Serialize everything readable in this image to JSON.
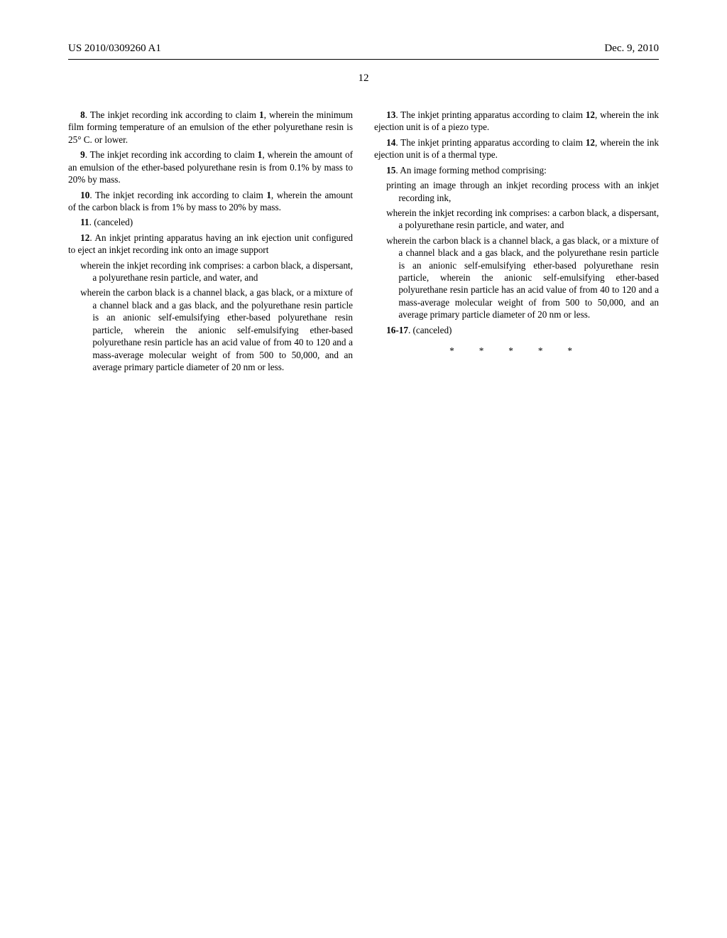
{
  "header": {
    "left": "US 2010/0309260 A1",
    "right": "Dec. 9, 2010"
  },
  "page_number": "12",
  "claims": {
    "c8": "The inkjet recording ink according to claim 1, wherein the minimum film forming temperature of an emulsion of the ether polyurethane resin is 25° C. or lower.",
    "c9": "The inkjet recording ink according to claim 1, wherein the amount of an emulsion of the ether-based polyurethane resin is from 0.1% by mass to 20% by mass.",
    "c10": "The inkjet recording ink according to claim 1, wherein the amount of the carbon black is from 1% by mass to 20% by mass.",
    "c11": "(canceled)",
    "c12_intro": "An inkjet printing apparatus having an ink ejection unit configured to eject an inkjet recording ink onto an image support",
    "c12_w1": "wherein the inkjet recording ink comprises: a carbon black, a dispersant, a polyurethane resin particle, and water, and",
    "c12_w2": "wherein the carbon black is a channel black, a gas black, or a mixture of a channel black and a gas black, and the polyurethane resin particle is an anionic self-emulsifying ether-based polyurethane resin particle, wherein the anionic self-emulsifying ether-based polyurethane resin particle has an acid value of from 40 to 120 and a mass-average molecular weight of from 500 to 50,000, and an average primary particle diameter of 20 nm or less.",
    "c13": "The inkjet printing apparatus according to claim 12, wherein the ink ejection unit is of a piezo type.",
    "c14": "The inkjet printing apparatus according to claim 12, wherein the ink ejection unit is of a thermal type.",
    "c15_intro": "An image forming method comprising:",
    "c15_w0": "printing an image through an inkjet recording process with an inkjet recording ink,",
    "c15_w1": "wherein the inkjet recording ink comprises: a carbon black, a dispersant, a polyurethane resin particle, and water, and",
    "c15_w2": "wherein the carbon black is a channel black, a gas black, or a mixture of a channel black and a gas black, and the polyurethane resin particle is an anionic self-emulsifying ether-based polyurethane resin particle, wherein the anionic self-emulsifying ether-based polyurethane resin particle has an acid value of from 40 to 120 and a mass-average molecular weight of from 500 to 50,000, and an average primary particle diameter of 20 nm or less.",
    "c16_17": "(canceled)"
  },
  "labels": {
    "n8": "8",
    "n9": "9",
    "n10": "10",
    "n11": "11",
    "n12": "12",
    "n13": "13",
    "n14": "14",
    "n15": "15",
    "n16_17": "16-17",
    "ref1": "1",
    "ref12": "12"
  },
  "stars": "*  *  *  *  *"
}
